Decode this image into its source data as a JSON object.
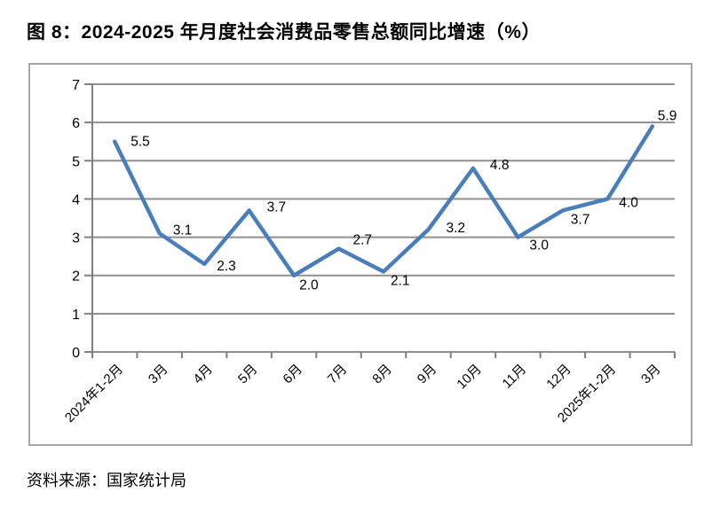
{
  "page": {
    "title": "图 8：2024-2025 年月度社会消费品零售总额同比增速（%）",
    "source": "资料来源：国家统计局"
  },
  "chart_data": {
    "type": "line",
    "title": "2024-2025 年月度社会消费品零售总额同比增速（%）",
    "categories": [
      "2024年1-2月",
      "3月",
      "4月",
      "5月",
      "6月",
      "7月",
      "8月",
      "9月",
      "10月",
      "11月",
      "12月",
      "2025年1-2月",
      "3月"
    ],
    "values": [
      5.5,
      3.1,
      2.3,
      3.7,
      2.0,
      2.7,
      2.1,
      3.2,
      4.8,
      3.0,
      3.7,
      4.0,
      5.9
    ],
    "data_labels": [
      "5.5",
      "3.1",
      "2.3",
      "3.7",
      "2.0",
      "2.7",
      "2.1",
      "3.2",
      "4.8",
      "3.0",
      "3.7",
      "4.0",
      "5.9"
    ],
    "xlabel": "",
    "ylabel": "",
    "ylim": [
      0,
      7
    ],
    "ytick_step": 1,
    "ytick_labels": [
      "0",
      "1",
      "2",
      "3",
      "4",
      "5",
      "6",
      "7"
    ],
    "grid": true,
    "legend": "none",
    "line_color": "#4a7ebb",
    "gridline_color": "#8f8f8f",
    "axis_color": "#7f7f7f",
    "text_color": "#000000",
    "border_color": "#a6a6a6"
  }
}
